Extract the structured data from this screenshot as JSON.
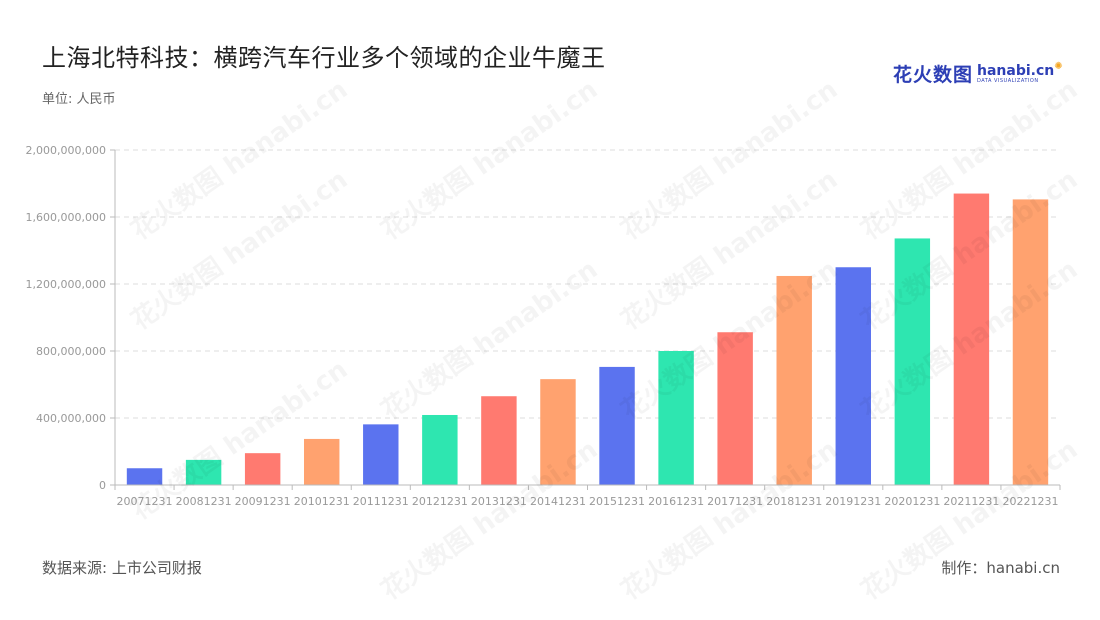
{
  "header": {
    "title": "上海北特科技：横跨汽车行业多个领域的企业牛魔王",
    "unit": "单位: 人民币"
  },
  "logo": {
    "cn": "花火数图",
    "en": "hanabi.cn",
    "sub": "DATA VISUALIZATION"
  },
  "footer": {
    "source": "数据来源: 上市公司财报",
    "credit": "制作：hanabi.cn"
  },
  "watermark": "花火数图 hanabi.cn",
  "chart_data": {
    "type": "bar",
    "categories": [
      "20071231",
      "20081231",
      "20091231",
      "20101231",
      "20111231",
      "20121231",
      "20131231",
      "20141231",
      "20151231",
      "20161231",
      "20171231",
      "20181231",
      "20191231",
      "20201231",
      "20211231",
      "20221231"
    ],
    "values": [
      100000000,
      150000000,
      190000000,
      275000000,
      362000000,
      418000000,
      530000000,
      632000000,
      705000000,
      800000000,
      912000000,
      1248000000,
      1300000000,
      1472000000,
      1740000000,
      1705000000
    ],
    "colors": [
      "#5b73ef",
      "#2ee6b0",
      "#ff7a70",
      "#ffa26f",
      "#5b73ef",
      "#2ee6b0",
      "#ff7a70",
      "#ffa26f",
      "#5b73ef",
      "#2ee6b0",
      "#ff7a70",
      "#ffa26f",
      "#5b73ef",
      "#2ee6b0",
      "#ff7a70",
      "#ffa26f"
    ],
    "yticks": [
      0,
      400000000,
      800000000,
      1200000000,
      1600000000,
      2000000000
    ],
    "ytick_labels": [
      "0",
      "400,000,000",
      "800,000,000",
      "1,200,000,000",
      "1,600,000,000",
      "2,000,000,000"
    ],
    "ylim": [
      0,
      2000000000
    ],
    "grid": true,
    "xlabel": "",
    "ylabel": ""
  }
}
